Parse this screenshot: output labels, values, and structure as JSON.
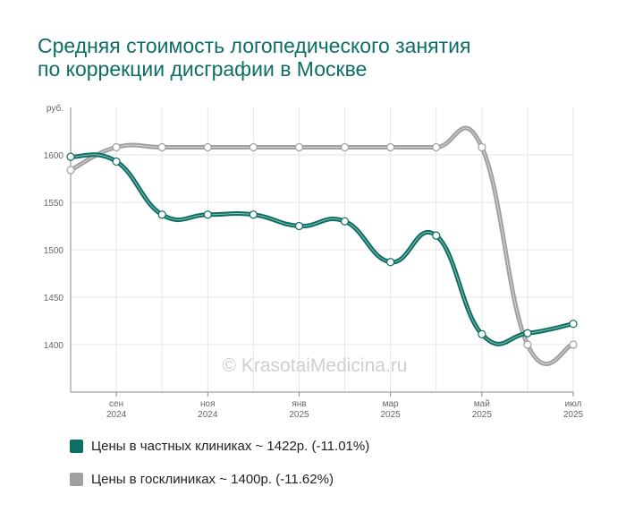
{
  "title_lines": [
    "Средняя стоимость логопедического занятия",
    "по коррекции дисграфии в Москве"
  ],
  "watermark": "© KrasotaiMedicina.ru",
  "colors": {
    "private": "#0d6e63",
    "public": "#a0a0a0",
    "grid": "#e6e6e6",
    "axis": "#888888"
  },
  "chart_data": {
    "type": "line",
    "y_unit": "руб.",
    "ylim": [
      1360,
      1650
    ],
    "yticks": [
      1400,
      1450,
      1500,
      1550,
      1600
    ],
    "x_ticks": [
      {
        "label": "сен",
        "year": "2024"
      },
      {
        "label": "ноя",
        "year": "2024"
      },
      {
        "label": "янв",
        "year": "2025"
      },
      {
        "label": "мар",
        "year": "2025"
      },
      {
        "label": "май",
        "year": "2025"
      },
      {
        "label": "июл",
        "year": "2025"
      }
    ],
    "grid": true,
    "legend_position": "bottom",
    "series": [
      {
        "key": "private",
        "name": "Цены в частных клиниках ~ 1422р. (-11.01%)",
        "values": [
          1598,
          1593,
          1537,
          1537,
          1537,
          1525,
          1530,
          1487,
          1515,
          1411,
          1412,
          1422
        ]
      },
      {
        "key": "public",
        "name": "Цены в госклиниках ~ 1400р. (-11.62%)",
        "values": [
          1584,
          1608,
          1608,
          1608,
          1608,
          1608,
          1608,
          1608,
          1608,
          1608,
          1400,
          1400
        ]
      }
    ]
  }
}
